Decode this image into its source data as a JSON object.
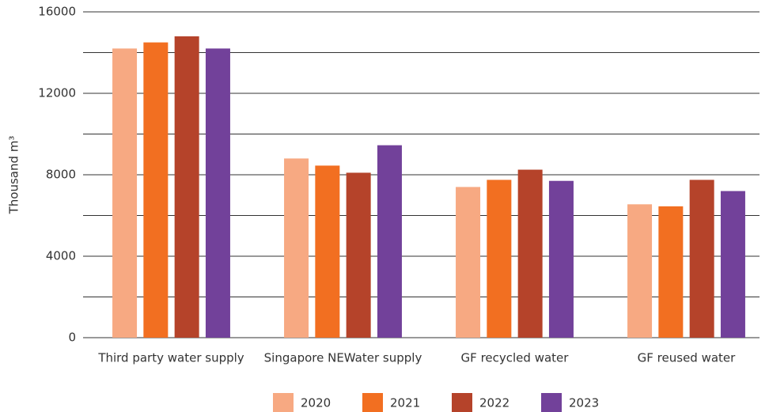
{
  "chart_data": {
    "type": "bar",
    "categories": [
      "Third party water supply",
      "Singapore NEWater supply",
      "GF recycled water",
      "GF reused water"
    ],
    "y_label": "Thousand  m³",
    "series": [
      {
        "name": "2020",
        "color": "#f7a982",
        "values": [
          14200,
          8800,
          7400,
          6550
        ]
      },
      {
        "name": "2021",
        "color": "#f26f21",
        "values": [
          14500,
          8450,
          7750,
          6450
        ]
      },
      {
        "name": "2022",
        "color": "#b5432a",
        "values": [
          14800,
          8100,
          8250,
          7750
        ]
      },
      {
        "name": "2023",
        "color": "#72419a",
        "values": [
          14200,
          9450,
          7700,
          7200
        ]
      }
    ],
    "ylim": [
      0,
      16000
    ],
    "yticks": [
      0,
      4000,
      8000,
      12000,
      16000
    ],
    "minor_yticks": [
      2000,
      6000,
      10000,
      14000
    ],
    "grid": true,
    "legend": "bottom"
  }
}
